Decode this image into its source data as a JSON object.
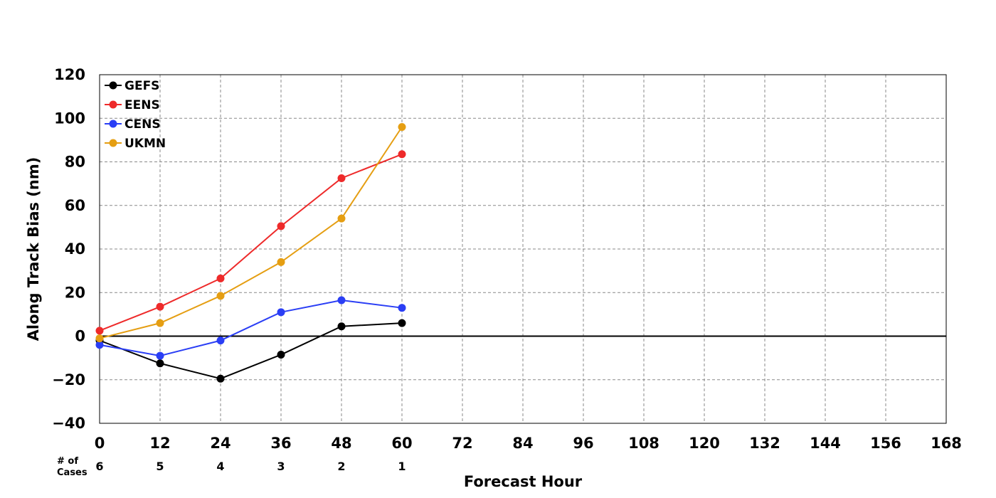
{
  "chart_data": {
    "type": "line",
    "title": "",
    "xlabel": "Forecast Hour",
    "ylabel": "Along Track Bias (nm)",
    "xlim": [
      0,
      168
    ],
    "ylim": [
      -40,
      120
    ],
    "x_ticks": [
      0,
      12,
      24,
      36,
      48,
      60,
      72,
      84,
      96,
      108,
      120,
      132,
      144,
      156,
      168
    ],
    "y_ticks": [
      -40,
      -20,
      0,
      20,
      40,
      60,
      80,
      100,
      120
    ],
    "y_tick_labels": [
      "−40",
      "−20",
      "0",
      "20",
      "40",
      "60",
      "80",
      "100",
      "120"
    ],
    "grid": true,
    "legend_position": "top-left",
    "x": [
      0,
      12,
      24,
      36,
      48,
      60
    ],
    "series": [
      {
        "name": "GEFS",
        "color": "#000000",
        "values": [
          -2,
          -12.5,
          -19.5,
          -8.5,
          4.5,
          6
        ]
      },
      {
        "name": "EENS",
        "color": "#ee2a2a",
        "values": [
          2.5,
          13.5,
          26.5,
          50.5,
          72.5,
          83.5
        ]
      },
      {
        "name": "CENS",
        "color": "#2a3ef5",
        "values": [
          -4,
          -9,
          -2,
          11,
          16.5,
          13
        ]
      },
      {
        "name": "UKMN",
        "color": "#e59e12",
        "values": [
          -1,
          6,
          18.5,
          34,
          54,
          96
        ]
      }
    ],
    "cases": {
      "label_line1": "# of",
      "label_line2": "Cases",
      "values": [
        6,
        5,
        4,
        3,
        2,
        1
      ]
    }
  }
}
